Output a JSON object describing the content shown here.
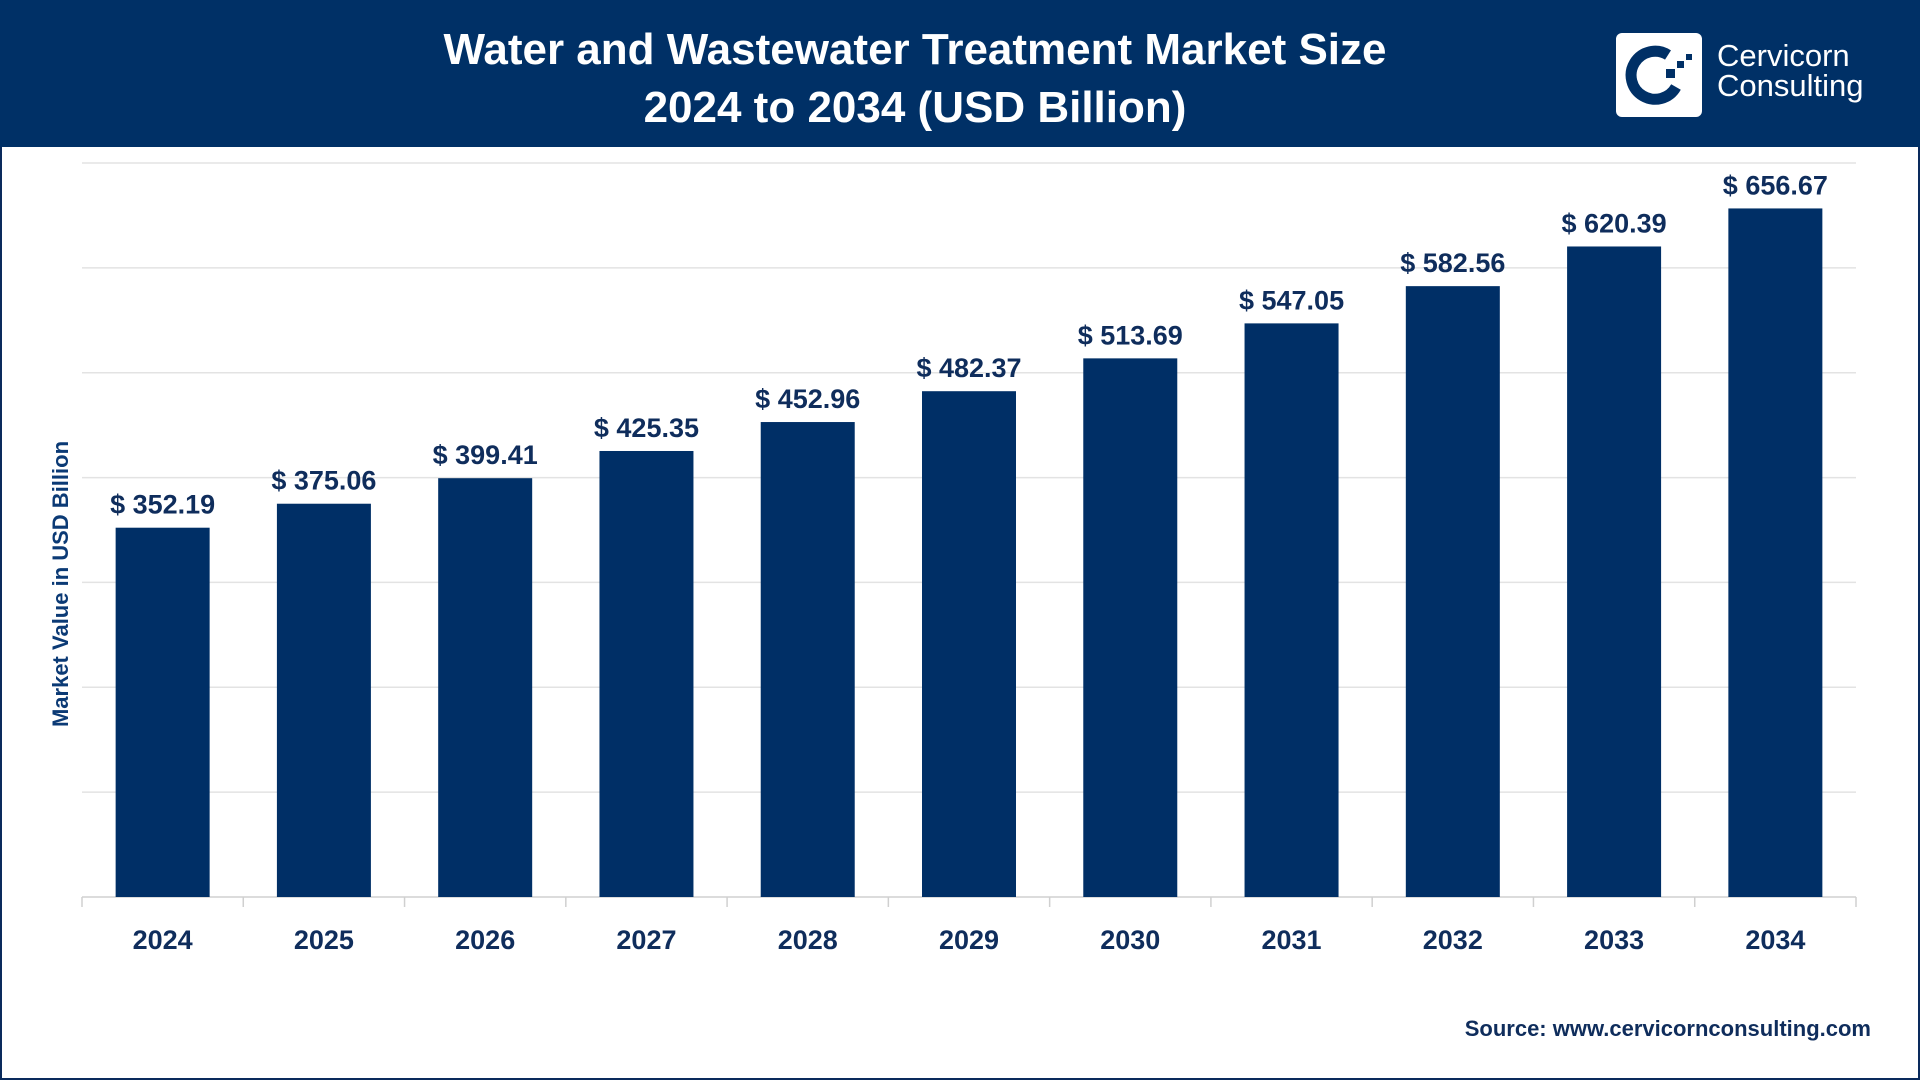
{
  "header": {
    "title_line1": "Water and Wastewater Treatment Market Size",
    "title_line2": "2024 to 2034 (USD Billion)",
    "logo_line1": "Cervicorn",
    "logo_line2": "Consulting"
  },
  "source": "Source: www.cervicornconsulting.com",
  "colors": {
    "header": "#003066",
    "bar": "#002f66",
    "text": "#0f2d5c"
  },
  "chart_data": {
    "type": "bar",
    "title": "Water and Wastewater Treatment Market Size 2024 to 2034 (USD Billion)",
    "xlabel": "",
    "ylabel": "Market Value in USD Billion",
    "categories": [
      "2024",
      "2025",
      "2026",
      "2027",
      "2028",
      "2029",
      "2030",
      "2031",
      "2032",
      "2033",
      "2034"
    ],
    "values": [
      352.19,
      375.06,
      399.41,
      425.35,
      452.96,
      482.37,
      513.69,
      547.05,
      582.56,
      620.39,
      656.67
    ],
    "data_labels": [
      "$ 352.19",
      "$ 375.06",
      "$ 399.41",
      "$ 425.35",
      "$ 452.96",
      "$ 482.37",
      "$ 513.69",
      "$ 547.05",
      "$ 582.56",
      "$ 620.39",
      "$ 656.67"
    ],
    "ylim": [
      0,
      700
    ],
    "grid": true,
    "grid_step": 100,
    "y_tick_labels_shown": false,
    "legend": "none"
  }
}
